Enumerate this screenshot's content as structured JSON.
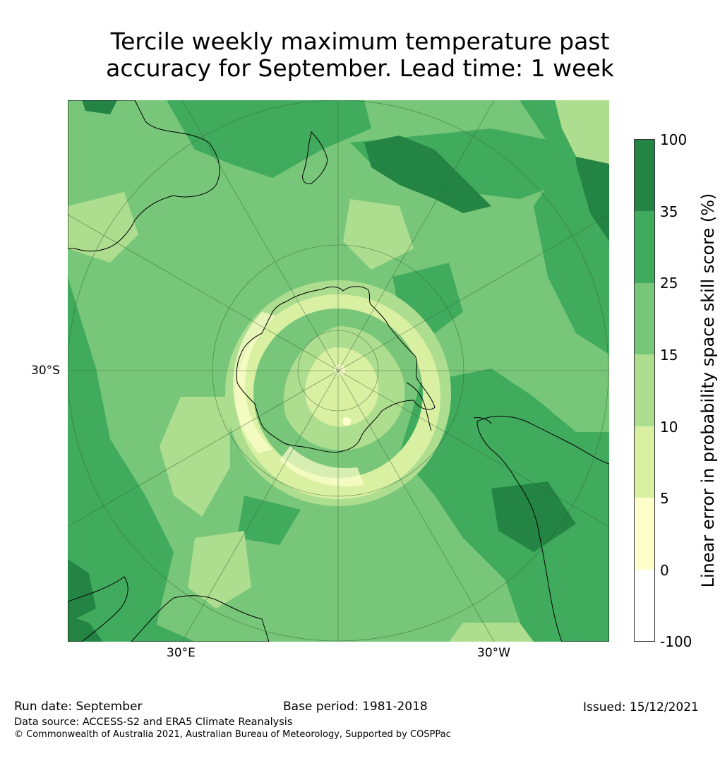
{
  "title": {
    "line1": "Tercile weekly maximum temperature past",
    "line2": "accuracy for September. Lead time: 1 week"
  },
  "map": {
    "projection": "south-polar-stereographic",
    "lat_label": "30°S",
    "lon_labels": [
      "30°E",
      "30°W"
    ],
    "colors": {
      "ocean_base": "#7ac47c",
      "dark": "#238443",
      "mid_dark": "#41ab5d",
      "mid": "#78c679",
      "light": "#addd8e",
      "pale": "#d9f0a3",
      "cream": "#ffffcc",
      "coast": "#000000",
      "grid": "#2f5f33"
    }
  },
  "colorbar": {
    "title": "Linear error in probability space skill score (%)",
    "tick_labels": [
      "100",
      "35",
      "25",
      "15",
      "10",
      "5",
      "0",
      "-100"
    ],
    "segments": [
      {
        "range": "35–100",
        "color": "#238443"
      },
      {
        "range": "25–35",
        "color": "#41ab5d"
      },
      {
        "range": "15–25",
        "color": "#78c679"
      },
      {
        "range": "10–15",
        "color": "#addd8e"
      },
      {
        "range": "5–10",
        "color": "#d9f0a3"
      },
      {
        "range": "0–5",
        "color": "#ffffcc"
      },
      {
        "range": "-100–0",
        "color": "#ffffff"
      }
    ]
  },
  "footer": {
    "run_date": "Run date: September",
    "base_period": "Base period: 1981-2018",
    "issued": "Issued: 15/12/2021",
    "data_source": "Data source: ACCESS-S2 and ERA5 Climate Reanalysis",
    "copyright": "© Commonwealth of Australia 2021, Australian Bureau of Meteorology, Supported by COSPPac"
  }
}
